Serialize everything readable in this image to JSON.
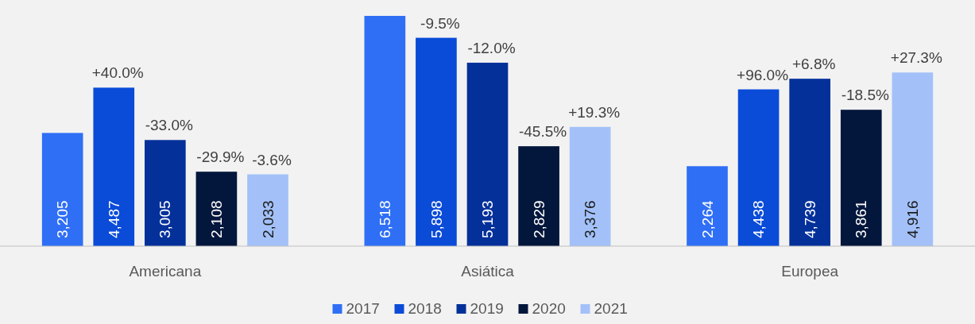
{
  "chart_data": {
    "type": "bar",
    "categories": [
      "Americana",
      "Asiática",
      "Europea"
    ],
    "series": [
      {
        "name": "2017",
        "color": "#2f6ff5",
        "values": [
          3205,
          6518,
          2264
        ],
        "value_labels": [
          "3,205",
          "6,518",
          "2,264"
        ]
      },
      {
        "name": "2018",
        "color": "#0a4bd8",
        "values": [
          4487,
          5898,
          4438
        ],
        "value_labels": [
          "4,487",
          "5,898",
          "4,438"
        ]
      },
      {
        "name": "2019",
        "color": "#04309a",
        "values": [
          3005,
          5193,
          4739
        ],
        "value_labels": [
          "3,005",
          "5,193",
          "4,739"
        ]
      },
      {
        "name": "2020",
        "color": "#03163c",
        "values": [
          2108,
          2829,
          3861
        ],
        "value_labels": [
          "2,108",
          "2,829",
          "3,861"
        ]
      },
      {
        "name": "2021",
        "color": "#a3c1f8",
        "values": [
          2033,
          3376,
          4916
        ],
        "value_labels": [
          "2,033",
          "3,376",
          "4,916"
        ]
      }
    ],
    "annotations": [
      "+40.0%",
      "-33.0%",
      "-29.9%",
      "-3.6%",
      "-9.5%",
      "-12.0%",
      "-45.5%",
      "+19.3%",
      "+96.0%",
      "+6.8%",
      "-18.5%",
      "+27.3%"
    ],
    "legend": "bottom"
  }
}
